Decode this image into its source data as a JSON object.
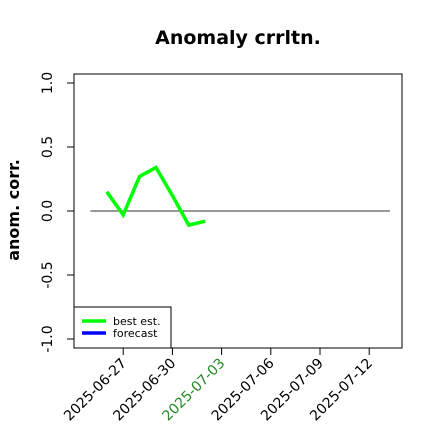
{
  "chart_data": {
    "type": "line",
    "title": "Anomaly crrltn.",
    "xlabel": "",
    "ylabel": "anom. corr.",
    "xlim": [
      "2025-06-24",
      "2025-07-14"
    ],
    "ylim": [
      -1.0,
      1.0
    ],
    "y_ticks": [
      "-1.0",
      "-0.5",
      "0.0",
      "0.5",
      "1.0"
    ],
    "x_ticks": [
      {
        "date": "2025-06-27",
        "label": "2025-06-27",
        "color": "#000000"
      },
      {
        "date": "2025-06-30",
        "label": "2025-06-30",
        "color": "#000000"
      },
      {
        "date": "2025-07-03",
        "label": "2025-07-03",
        "color": "#228B22"
      },
      {
        "date": "2025-07-06",
        "label": "2025-07-06",
        "color": "#000000"
      },
      {
        "date": "2025-07-09",
        "label": "2025-07-09",
        "color": "#000000"
      },
      {
        "date": "2025-07-12",
        "label": "2025-07-12",
        "color": "#000000"
      }
    ],
    "reference_line": {
      "y": 0.0,
      "x_from": "2025-06-25",
      "x_to": "2025-07-14"
    },
    "series": [
      {
        "name": "best est.",
        "color": "#00ff00",
        "x": [
          "2025-06-26",
          "2025-06-27",
          "2025-06-28",
          "2025-06-29",
          "2025-06-30",
          "2025-07-01",
          "2025-07-02"
        ],
        "y": [
          0.15,
          -0.03,
          0.27,
          0.34,
          0.12,
          -0.11,
          -0.08
        ]
      },
      {
        "name": "forecast",
        "color": "#0000ff",
        "x": [],
        "y": []
      }
    ],
    "legend": {
      "position": "bottom-left"
    }
  }
}
